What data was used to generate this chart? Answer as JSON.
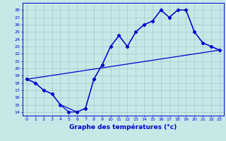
{
  "xlabel": "Graphe des températures (°c)",
  "x_ticks": [
    0,
    1,
    2,
    3,
    4,
    5,
    6,
    7,
    8,
    9,
    10,
    11,
    12,
    13,
    14,
    15,
    16,
    17,
    18,
    19,
    20,
    21,
    22,
    23
  ],
  "x_tick_labels": [
    "0",
    "1",
    "2",
    "3",
    "4",
    "5",
    "6",
    "7",
    "8",
    "9",
    "10",
    "11",
    "12",
    "13",
    "14",
    "15",
    "16",
    "17",
    "18",
    "19",
    "20",
    "21",
    "22",
    "23"
  ],
  "ylim": [
    13.5,
    29
  ],
  "xlim": [
    -0.5,
    23.5
  ],
  "yticks": [
    14,
    15,
    16,
    17,
    18,
    19,
    20,
    21,
    22,
    23,
    24,
    25,
    26,
    27,
    28
  ],
  "ytick_labels": [
    "14",
    "15",
    "16",
    "17",
    "18",
    "19",
    "20",
    "21",
    "22",
    "23",
    "24",
    "25",
    "26",
    "27",
    "28"
  ],
  "line1_x": [
    0,
    1,
    2,
    3,
    4,
    5,
    6,
    7,
    8,
    9,
    10,
    11,
    12,
    13,
    14,
    15,
    16,
    17,
    18,
    19,
    20,
    21,
    22,
    23
  ],
  "line1_y": [
    18.5,
    18,
    17,
    16.5,
    15,
    14,
    14,
    14.5,
    18.5,
    20.5,
    23,
    24.5,
    23,
    25,
    26,
    26.5,
    28,
    27,
    28,
    28,
    25,
    23.5,
    23,
    22.5
  ],
  "line2_x": [
    0,
    1,
    2,
    3,
    4,
    5,
    6,
    7,
    8,
    9,
    10,
    11,
    12,
    13,
    14,
    15,
    16,
    17,
    18,
    19,
    20,
    21,
    22,
    23
  ],
  "line2_y": [
    18.5,
    18,
    17,
    16.5,
    15,
    14.5,
    14,
    14.5,
    18.5,
    20.5,
    23,
    24.5,
    23,
    25,
    26,
    26.5,
    28,
    27,
    28,
    28,
    25,
    23.5,
    23,
    22.5
  ],
  "trend_x": [
    0,
    23
  ],
  "trend_y": [
    18.5,
    22.5
  ],
  "line_color": "#0000cc",
  "bg_color": "#c8e8e8",
  "grid_color": "#99cccc",
  "spine_color": "#0000cc",
  "text_color": "#0000cc"
}
